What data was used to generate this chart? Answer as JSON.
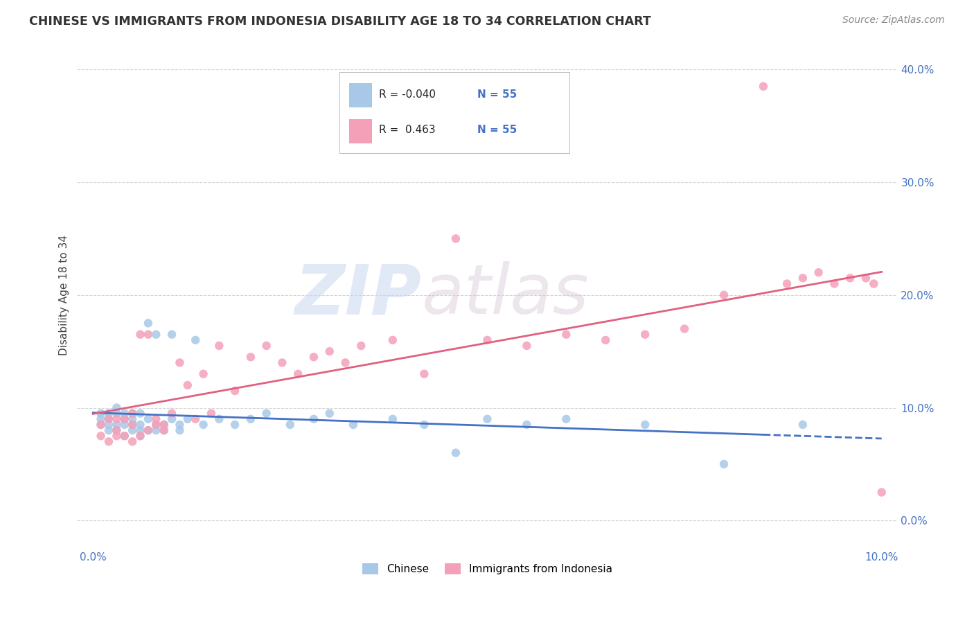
{
  "title": "CHINESE VS IMMIGRANTS FROM INDONESIA DISABILITY AGE 18 TO 34 CORRELATION CHART",
  "source": "Source: ZipAtlas.com",
  "ylabel": "Disability Age 18 to 34",
  "xlim": [
    -0.002,
    0.102
  ],
  "ylim": [
    -0.025,
    0.425
  ],
  "r_chinese": -0.04,
  "r_indonesia": 0.463,
  "n_chinese": 55,
  "n_indonesia": 55,
  "legend_label_chinese": "Chinese",
  "legend_label_indonesia": "Immigrants from Indonesia",
  "color_chinese": "#a8c8e8",
  "color_indonesia": "#f4a0b8",
  "line_color_chinese": "#4472c4",
  "line_color_indonesia": "#e06080",
  "watermark_zip": "ZIP",
  "watermark_atlas": "atlas",
  "background_color": "#ffffff",
  "tick_color": "#4472c4",
  "chinese_x": [
    0.001,
    0.001,
    0.001,
    0.002,
    0.002,
    0.002,
    0.002,
    0.003,
    0.003,
    0.003,
    0.003,
    0.004,
    0.004,
    0.004,
    0.004,
    0.005,
    0.005,
    0.005,
    0.005,
    0.006,
    0.006,
    0.006,
    0.006,
    0.007,
    0.007,
    0.007,
    0.008,
    0.008,
    0.008,
    0.009,
    0.009,
    0.01,
    0.01,
    0.011,
    0.011,
    0.012,
    0.013,
    0.014,
    0.016,
    0.018,
    0.02,
    0.022,
    0.025,
    0.028,
    0.03,
    0.033,
    0.038,
    0.042,
    0.046,
    0.05,
    0.055,
    0.06,
    0.07,
    0.08,
    0.09
  ],
  "chinese_y": [
    0.09,
    0.085,
    0.095,
    0.08,
    0.09,
    0.085,
    0.095,
    0.08,
    0.085,
    0.095,
    0.1,
    0.075,
    0.085,
    0.09,
    0.095,
    0.08,
    0.085,
    0.09,
    0.095,
    0.075,
    0.08,
    0.085,
    0.095,
    0.175,
    0.08,
    0.09,
    0.08,
    0.085,
    0.165,
    0.08,
    0.085,
    0.165,
    0.09,
    0.08,
    0.085,
    0.09,
    0.16,
    0.085,
    0.09,
    0.085,
    0.09,
    0.095,
    0.085,
    0.09,
    0.095,
    0.085,
    0.09,
    0.085,
    0.06,
    0.09,
    0.085,
    0.09,
    0.085,
    0.05,
    0.085
  ],
  "indonesia_x": [
    0.001,
    0.001,
    0.002,
    0.002,
    0.003,
    0.003,
    0.003,
    0.004,
    0.004,
    0.005,
    0.005,
    0.005,
    0.006,
    0.006,
    0.007,
    0.007,
    0.008,
    0.008,
    0.009,
    0.009,
    0.01,
    0.011,
    0.012,
    0.013,
    0.014,
    0.015,
    0.016,
    0.018,
    0.02,
    0.022,
    0.024,
    0.026,
    0.028,
    0.03,
    0.032,
    0.034,
    0.038,
    0.042,
    0.046,
    0.05,
    0.055,
    0.06,
    0.065,
    0.07,
    0.075,
    0.08,
    0.085,
    0.088,
    0.09,
    0.092,
    0.094,
    0.096,
    0.098,
    0.099,
    0.1
  ],
  "indonesia_y": [
    0.075,
    0.085,
    0.07,
    0.09,
    0.075,
    0.08,
    0.09,
    0.075,
    0.09,
    0.07,
    0.085,
    0.095,
    0.075,
    0.165,
    0.08,
    0.165,
    0.085,
    0.09,
    0.08,
    0.085,
    0.095,
    0.14,
    0.12,
    0.09,
    0.13,
    0.095,
    0.155,
    0.115,
    0.145,
    0.155,
    0.14,
    0.13,
    0.145,
    0.15,
    0.14,
    0.155,
    0.16,
    0.13,
    0.25,
    0.16,
    0.155,
    0.165,
    0.16,
    0.165,
    0.17,
    0.2,
    0.385,
    0.21,
    0.215,
    0.22,
    0.21,
    0.215,
    0.215,
    0.21,
    0.025
  ]
}
